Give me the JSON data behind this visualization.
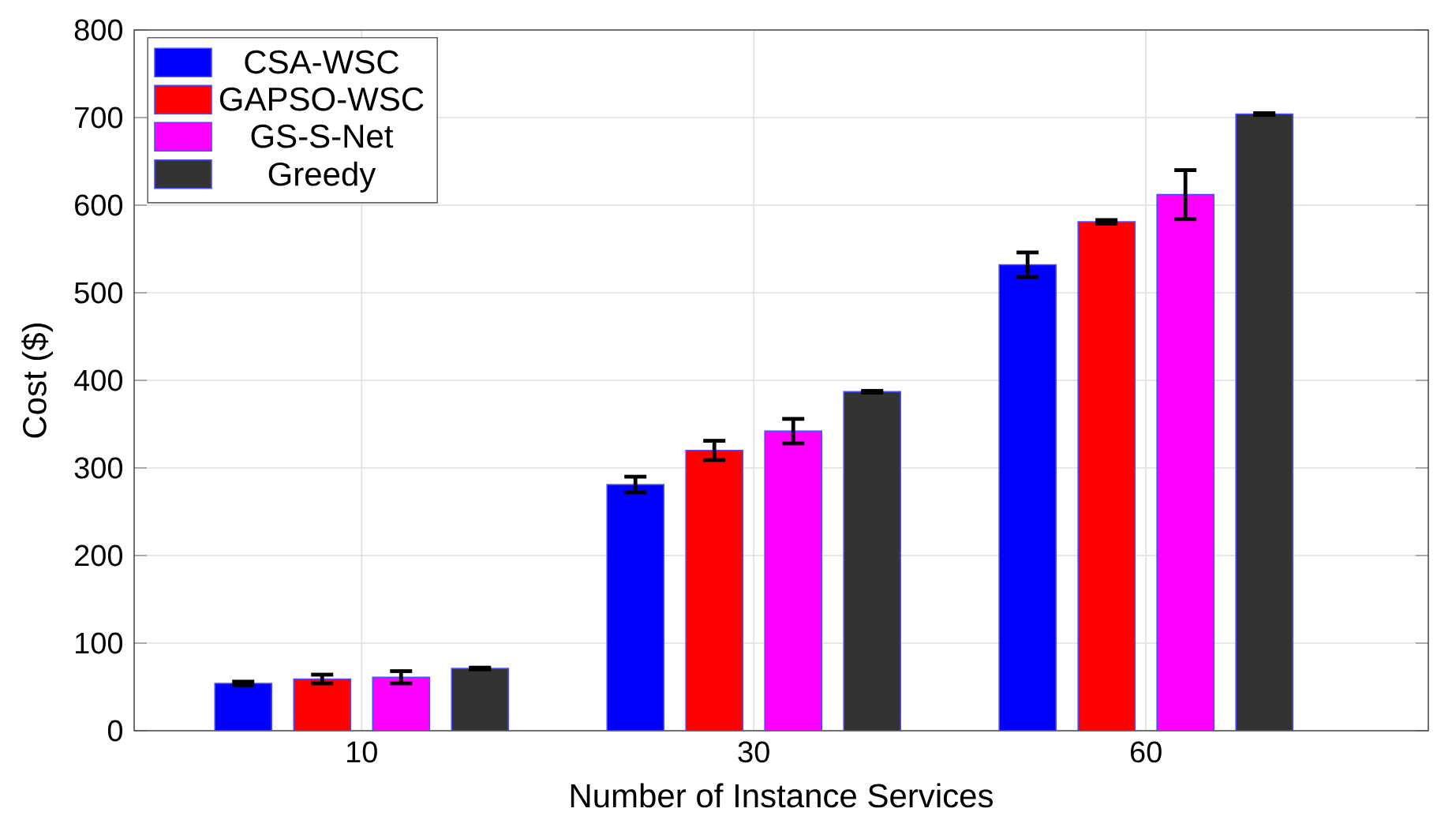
{
  "chart_data": {
    "type": "bar",
    "xlabel": "Number of Instance Services",
    "ylabel": "Cost ($)",
    "categories": [
      "10",
      "30",
      "60"
    ],
    "series": [
      {
        "name": "CSA-WSC",
        "color": "#0000ff",
        "values": [
          54,
          281,
          532
        ],
        "errors": [
          2,
          9,
          14
        ]
      },
      {
        "name": "GAPSO-WSC",
        "color": "#ff0000",
        "values": [
          59,
          320,
          581
        ],
        "errors": [
          5,
          11,
          2
        ]
      },
      {
        "name": "GS-S-Net",
        "color": "#ff00ff",
        "values": [
          61,
          342,
          612
        ],
        "errors": [
          7,
          14,
          28
        ]
      },
      {
        "name": "Greedy",
        "color": "#333333",
        "values": [
          71,
          387,
          704
        ],
        "errors": [
          1,
          1,
          1
        ]
      }
    ],
    "ylim": [
      0,
      800
    ],
    "yticks": [
      0,
      100,
      200,
      300,
      400,
      500,
      600,
      700,
      800
    ],
    "grid": true,
    "legend": "top left"
  }
}
